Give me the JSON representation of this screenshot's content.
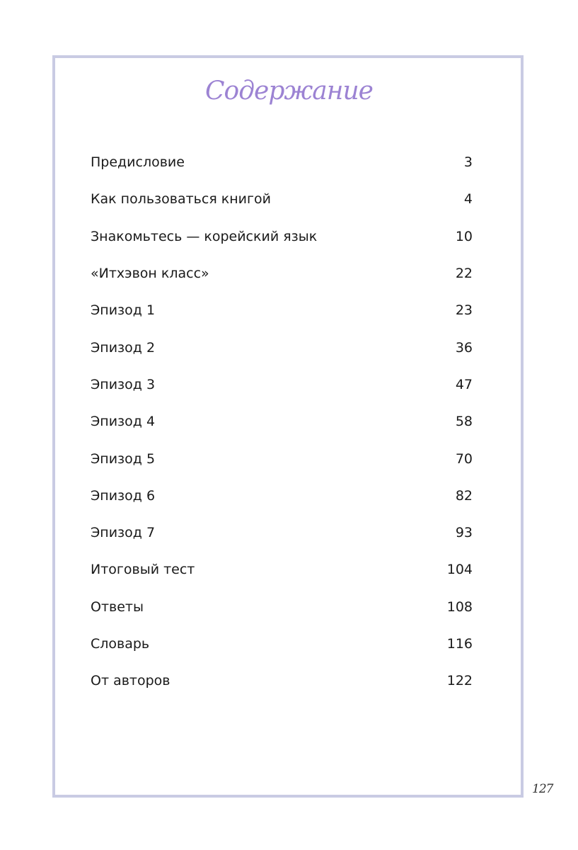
{
  "title": "Содержание",
  "entries": [
    {
      "label": "Предисловие",
      "page": "3"
    },
    {
      "label": "Как пользоваться книгой",
      "page": "4"
    },
    {
      "label": "Знакомьтесь — корейский язык",
      "page": "10"
    },
    {
      "label": "«Итхэвон класс»",
      "page": "22"
    },
    {
      "label": "Эпизод 1",
      "page": "23"
    },
    {
      "label": "Эпизод 2",
      "page": "36"
    },
    {
      "label": "Эпизод 3",
      "page": "47"
    },
    {
      "label": "Эпизод 4",
      "page": "58"
    },
    {
      "label": "Эпизод 5",
      "page": "70"
    },
    {
      "label": "Эпизод 6",
      "page": "82"
    },
    {
      "label": "Эпизод 7",
      "page": "93"
    },
    {
      "label": "Итоговый тест",
      "page": "104"
    },
    {
      "label": "Ответы",
      "page": "108"
    },
    {
      "label": "Словарь",
      "page": "116"
    },
    {
      "label": "От авторов",
      "page": "122"
    }
  ],
  "page_number": "127",
  "colors": {
    "title": "#9c83d3",
    "frame": "#c9cbe3"
  }
}
